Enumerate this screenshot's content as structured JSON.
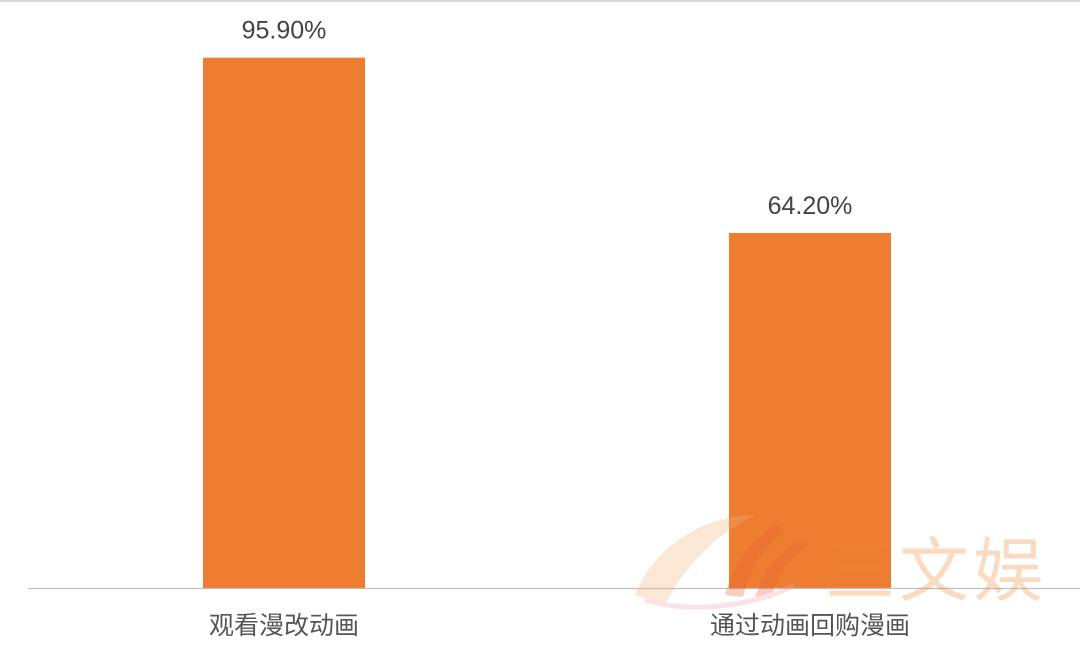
{
  "chart_data": {
    "type": "bar",
    "categories": [
      "观看漫改动画",
      "通过动画回购漫画"
    ],
    "values": [
      95.9,
      64.2
    ],
    "data_labels": [
      "95.90%",
      "64.20%"
    ],
    "title": "",
    "xlabel": "",
    "ylabel": "",
    "ylim": [
      0,
      100
    ],
    "grid": false,
    "y_axis_visible": false,
    "bar_color": "#ed7d31",
    "label_color": "#444444"
  },
  "watermark": {
    "text": "三文娱"
  }
}
